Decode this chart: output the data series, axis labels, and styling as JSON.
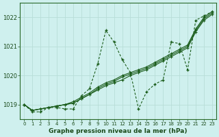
{
  "xlabel": "Graphe pression niveau de la mer (hPa)",
  "background_color": "#cff0ee",
  "grid_color": "#b8ddd8",
  "line_color": "#1a5c1a",
  "ylim": [
    1018.5,
    1022.5
  ],
  "xlim": [
    -0.5,
    23.5
  ],
  "yticks": [
    1019,
    1020,
    1021,
    1022
  ],
  "xticks": [
    0,
    1,
    2,
    3,
    4,
    5,
    6,
    7,
    8,
    9,
    10,
    11,
    12,
    13,
    14,
    15,
    16,
    17,
    18,
    19,
    20,
    21,
    22,
    23
  ],
  "series_jagged": [
    1019.0,
    1018.75,
    1018.75,
    1018.9,
    1018.9,
    1018.85,
    1018.85,
    1019.3,
    1019.55,
    1020.4,
    1021.55,
    1021.15,
    1020.55,
    1020.1,
    1018.85,
    1019.45,
    1019.7,
    1019.85,
    1021.15,
    1021.1,
    1020.2,
    1021.9,
    1022.05,
    1022.2
  ],
  "series_straight": [
    [
      1019.0,
      1018.8,
      1018.85,
      1018.9,
      1018.95,
      1019.0,
      1019.05,
      1019.2,
      1019.35,
      1019.5,
      1019.65,
      1019.75,
      1019.85,
      1020.0,
      1020.1,
      1020.2,
      1020.35,
      1020.5,
      1020.65,
      1020.8,
      1020.95,
      1021.5,
      1021.9,
      1022.1
    ],
    [
      1019.0,
      1018.8,
      1018.85,
      1018.9,
      1018.95,
      1019.0,
      1019.05,
      1019.2,
      1019.35,
      1019.55,
      1019.7,
      1019.8,
      1019.95,
      1020.05,
      1020.15,
      1020.25,
      1020.4,
      1020.55,
      1020.7,
      1020.85,
      1021.0,
      1021.55,
      1021.95,
      1022.15
    ],
    [
      1019.0,
      1018.8,
      1018.85,
      1018.9,
      1018.95,
      1019.0,
      1019.1,
      1019.25,
      1019.4,
      1019.6,
      1019.75,
      1019.85,
      1020.0,
      1020.1,
      1020.2,
      1020.3,
      1020.45,
      1020.6,
      1020.75,
      1020.9,
      1021.05,
      1021.6,
      1022.0,
      1022.2
    ]
  ]
}
